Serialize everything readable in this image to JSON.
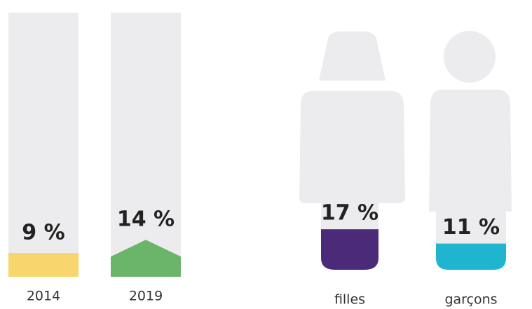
{
  "chart_data": [
    {
      "type": "bar",
      "categories": [
        "2014",
        "2019"
      ],
      "values": [
        9,
        14
      ],
      "value_labels": [
        "9 %",
        "14 %"
      ],
      "colors": [
        "#f9d56e",
        "#6ab56a"
      ],
      "ylim": [
        0,
        100
      ]
    },
    {
      "type": "pictogram",
      "categories": [
        "filles",
        "garçons"
      ],
      "values": [
        17,
        11
      ],
      "value_labels": [
        "17 %",
        "11 %"
      ],
      "colors": [
        "#4b2a7a",
        "#1fb5cf"
      ],
      "ylim": [
        0,
        100
      ]
    }
  ]
}
